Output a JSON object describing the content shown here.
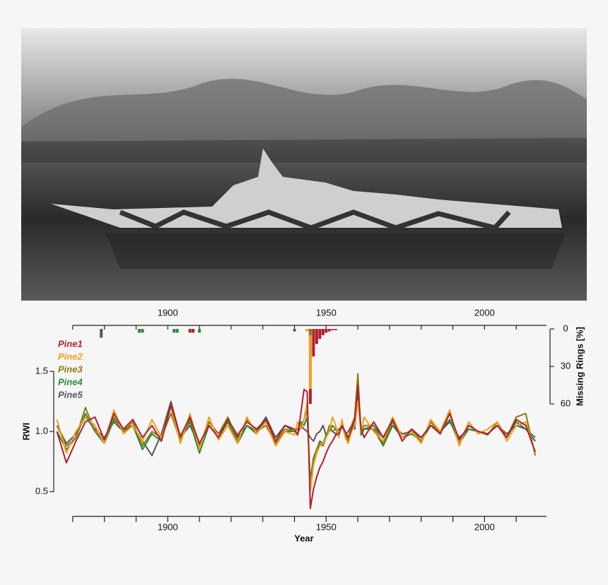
{
  "chart_data": {
    "type": "line",
    "xlabel": "Year",
    "ylabel": "RWI",
    "y2label": "Missing Rings [%]",
    "xlim": [
      1864,
      2020
    ],
    "xticks": [
      1900,
      1950,
      2000
    ],
    "xminorticks": [
      1870,
      1880,
      1890,
      1910,
      1920,
      1930,
      1940,
      1960,
      1970,
      1980,
      1990,
      2010
    ],
    "ylim": [
      0.5,
      1.5
    ],
    "yticks": [
      {
        "value": 0.5,
        "label": "0.5"
      },
      {
        "value": 1.0,
        "label": "1.0"
      },
      {
        "value": 1.5,
        "label": "1.5"
      }
    ],
    "y2lim": [
      0,
      60
    ],
    "y2ticks": [
      0,
      30,
      60
    ],
    "x": [
      1865,
      1868,
      1871,
      1874,
      1877,
      1880,
      1883,
      1886,
      1889,
      1892,
      1895,
      1898,
      1901,
      1904,
      1907,
      1910,
      1913,
      1916,
      1919,
      1922,
      1925,
      1928,
      1931,
      1934,
      1937,
      1940,
      1941,
      1942,
      1943,
      1944,
      1945,
      1946,
      1947,
      1948,
      1949,
      1950,
      1951,
      1952,
      1953,
      1954,
      1955,
      1956,
      1957,
      1958,
      1959,
      1960,
      1961,
      1962,
      1965,
      1968,
      1971,
      1974,
      1977,
      1980,
      1983,
      1986,
      1989,
      1992,
      1995,
      1998,
      2001,
      2004,
      2007,
      2010,
      2013,
      2016
    ],
    "series": [
      {
        "name": "Pine1",
        "color": "#b0202e",
        "values": [
          1.0,
          0.74,
          0.92,
          1.08,
          1.12,
          0.93,
          1.15,
          1.02,
          1.1,
          0.95,
          1.05,
          0.92,
          1.22,
          0.96,
          1.12,
          0.9,
          1.05,
          0.95,
          1.1,
          0.97,
          1.08,
          1.02,
          1.1,
          0.92,
          1.05,
          1.02,
          0.97,
          1.15,
          1.35,
          1.33,
          0.36,
          0.52,
          0.62,
          0.7,
          0.75,
          0.82,
          0.88,
          0.92,
          0.97,
          0.98,
          1.05,
          1.0,
          0.95,
          1.02,
          1.1,
          1.38,
          1.02,
          0.95,
          1.08,
          0.95,
          1.1,
          0.92,
          1.02,
          0.95,
          1.05,
          0.98,
          1.15,
          0.93,
          1.05,
          1.0,
          0.98,
          1.05,
          0.95,
          1.1,
          1.05,
          0.83
        ],
        "missing_x": [
          1907,
          1908,
          1944,
          1945,
          1946,
          1947,
          1948,
          1949,
          1950,
          1951,
          1952,
          1953
        ],
        "missing_values": [
          3,
          3,
          2,
          60,
          22,
          12,
          8,
          5,
          3,
          2,
          1,
          1
        ]
      },
      {
        "name": "Pine2",
        "color": "#f0a020",
        "values": [
          1.1,
          0.82,
          1.0,
          1.12,
          1.05,
          0.9,
          1.18,
          0.98,
          1.05,
          0.92,
          1.1,
          0.95,
          1.2,
          0.9,
          1.15,
          0.85,
          1.12,
          0.93,
          1.05,
          0.9,
          1.12,
          0.98,
          1.08,
          0.88,
          1.0,
          0.97,
          1.08,
          1.02,
          1.1,
          1.25,
          0.5,
          0.72,
          0.82,
          0.88,
          0.9,
          0.95,
          1.0,
          1.12,
          1.05,
          0.95,
          1.1,
          0.95,
          0.9,
          1.0,
          1.05,
          1.25,
          1.0,
          1.12,
          1.0,
          0.92,
          1.12,
          0.95,
          1.0,
          0.9,
          1.1,
          1.0,
          1.18,
          0.88,
          1.08,
          0.98,
          1.02,
          1.08,
          0.92,
          1.05,
          1.08,
          0.82
        ],
        "missing_x": [
          1944,
          1945
        ],
        "missing_values": [
          2,
          48
        ]
      },
      {
        "name": "Pine3",
        "color": "#8a7a10",
        "values": [
          1.05,
          0.88,
          0.95,
          1.2,
          1.0,
          0.93,
          1.12,
          1.0,
          1.08,
          0.88,
          1.0,
          0.95,
          1.15,
          0.92,
          1.1,
          0.88,
          1.08,
          0.98,
          1.12,
          0.92,
          1.1,
          1.0,
          1.05,
          0.9,
          1.02,
          1.0,
          1.02,
          1.05,
          1.1,
          1.18,
          0.55,
          0.75,
          0.85,
          0.9,
          0.88,
          0.95,
          1.05,
          1.0,
          1.02,
          0.98,
          1.05,
          0.97,
          0.93,
          1.05,
          1.12,
          1.48,
          0.98,
          1.05,
          1.05,
          0.9,
          1.08,
          0.95,
          1.02,
          0.92,
          1.08,
          0.98,
          1.15,
          0.9,
          1.05,
          1.0,
          0.97,
          1.08,
          0.95,
          1.12,
          1.15,
          0.8
        ],
        "missing_x": [
          1945
        ],
        "missing_values": [
          5
        ]
      },
      {
        "name": "Pine4",
        "color": "#2a8a3a",
        "values": [
          1.0,
          0.85,
          0.95,
          1.15,
          1.0,
          0.9,
          1.1,
          1.02,
          1.05,
          0.85,
          0.98,
          0.92,
          1.22,
          0.95,
          1.08,
          0.82,
          1.05,
          0.95,
          1.08,
          0.9,
          1.05,
          0.98,
          1.1,
          0.9,
          1.0,
          1.0,
          1.02,
          1.08,
          1.05,
          1.12,
          0.6,
          0.78,
          0.85,
          0.92,
          0.9,
          0.97,
          1.0,
          1.05,
          1.02,
          0.97,
          1.05,
          0.98,
          0.92,
          1.02,
          1.08,
          1.45,
          0.97,
          1.02,
          1.02,
          0.88,
          1.05,
          0.95,
          0.98,
          0.92,
          1.05,
          1.0,
          1.1,
          0.9,
          1.02,
          1.0,
          0.98,
          1.05,
          0.95,
          1.08,
          1.02,
          0.95
        ],
        "missing_x": [
          1891,
          1892,
          1902,
          1903,
          1910
        ],
        "missing_values": [
          3,
          3,
          3,
          3,
          3
        ]
      },
      {
        "name": "Pine5",
        "color": "#555555",
        "values": [
          1.05,
          0.9,
          0.98,
          1.12,
          1.02,
          0.95,
          1.08,
          1.0,
          1.05,
          0.92,
          0.8,
          0.98,
          1.25,
          0.95,
          1.05,
          0.88,
          1.08,
          0.98,
          1.1,
          0.95,
          1.05,
          1.0,
          1.12,
          0.95,
          1.05,
          1.0,
          0.98,
          1.05,
          1.02,
          1.0,
          0.95,
          0.92,
          0.98,
          1.0,
          1.05,
          0.97,
          1.02,
          1.0,
          0.98,
          1.02,
          1.05,
          0.97,
          1.0,
          1.05,
          1.02,
          1.3,
          1.0,
          1.02,
          1.05,
          0.95,
          1.05,
          0.98,
          1.0,
          0.95,
          1.05,
          1.0,
          1.08,
          0.95,
          1.02,
          1.0,
          0.98,
          1.05,
          0.98,
          1.05,
          1.02,
          0.92
        ],
        "missing_x": [
          1879,
          1940
        ],
        "missing_values": [
          7,
          2
        ]
      }
    ]
  }
}
